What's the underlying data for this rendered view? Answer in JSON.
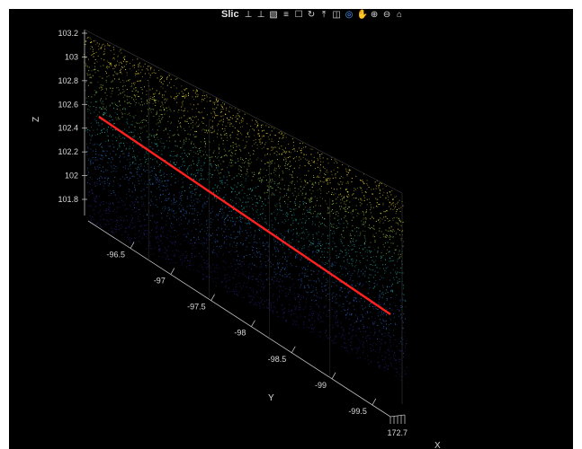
{
  "window": {
    "title": "Slic"
  },
  "toolbar": {
    "icons": [
      {
        "name": "pan-x-icon",
        "glyph": "⊥"
      },
      {
        "name": "pan-y-icon",
        "glyph": "⊥"
      },
      {
        "name": "brush-icon",
        "glyph": "▧"
      },
      {
        "name": "datatip-icon",
        "glyph": "≡"
      },
      {
        "name": "crop-icon",
        "glyph": "☐"
      },
      {
        "name": "rotate-icon",
        "glyph": "↻"
      },
      {
        "name": "export-icon",
        "glyph": "⤒"
      },
      {
        "name": "link-icon",
        "glyph": "◫"
      },
      {
        "name": "rotate3d-icon",
        "glyph": "◎",
        "active": true
      },
      {
        "name": "pan-icon",
        "glyph": "✋"
      },
      {
        "name": "zoom-in-icon",
        "glyph": "⊕"
      },
      {
        "name": "zoom-out-icon",
        "glyph": "⊖"
      },
      {
        "name": "home-icon",
        "glyph": "⌂"
      }
    ]
  },
  "chart_data": {
    "type": "scatter",
    "xlabel": "X",
    "ylabel": "Y",
    "zlabel": "Z",
    "x_tick_labels": [
      "172.7"
    ],
    "y_tick_labels": [
      "-96.5",
      "-97",
      "-97.5",
      "-98",
      "-98.5",
      "-99",
      "-99.5"
    ],
    "z_tick_labels": [
      "103.2",
      "103",
      "102.8",
      "102.6",
      "102.4",
      "102.2",
      "102",
      "101.8"
    ],
    "zlim": [
      101.8,
      103.2
    ],
    "ylim": [
      -99.5,
      -96.5
    ],
    "grid": true,
    "background": "#000000",
    "point_cloud_colormap": [
      "#2a1f7a",
      "#2b63b8",
      "#27a8a0",
      "#9bc94a",
      "#f5e03a"
    ],
    "fit_line_color": "#ff2020"
  }
}
